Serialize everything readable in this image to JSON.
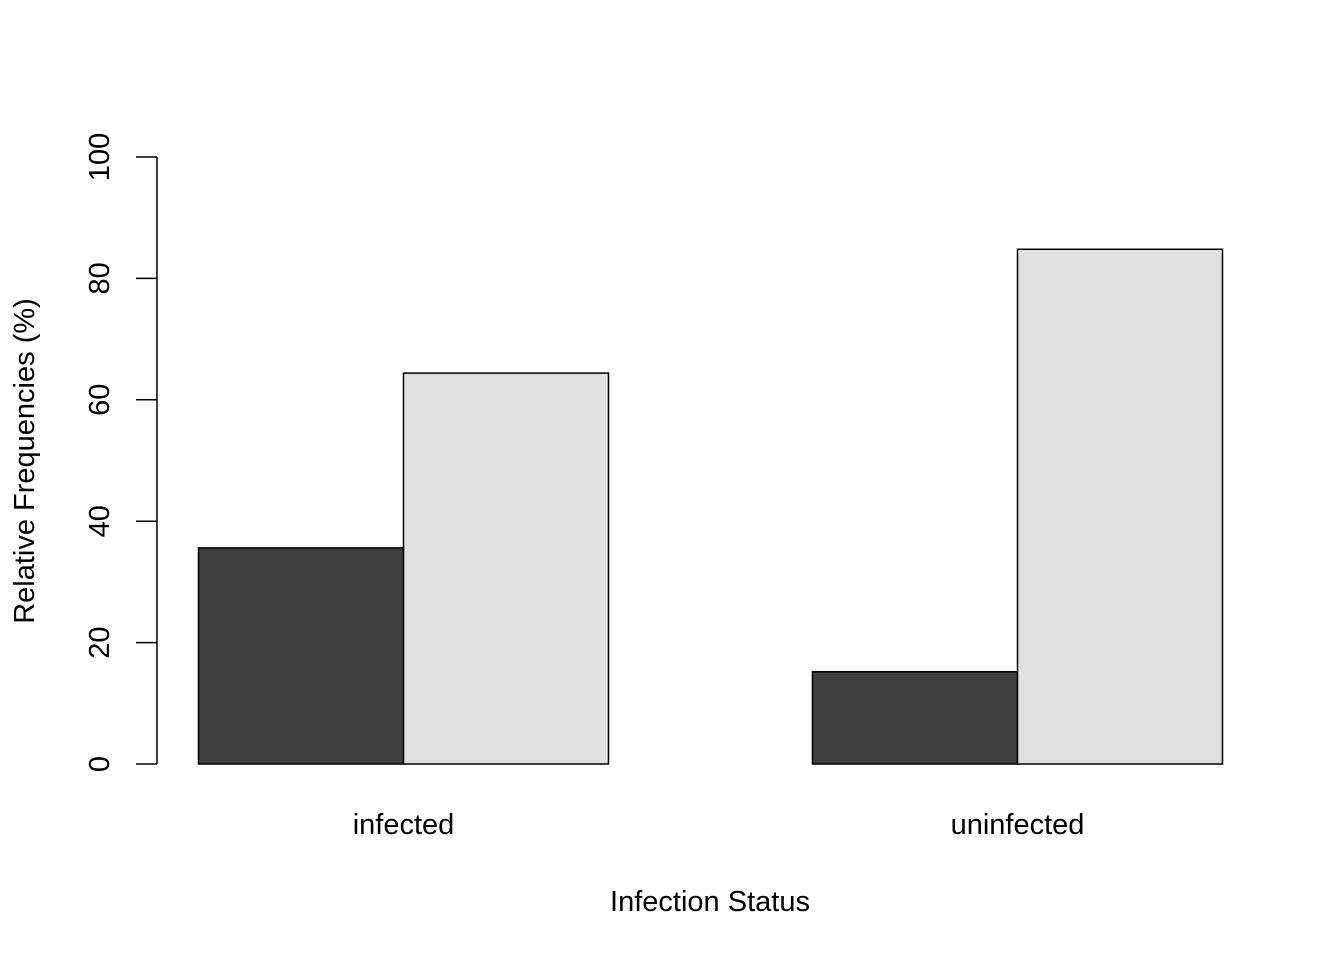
{
  "chart_data": {
    "type": "bar",
    "title": "",
    "xlabel": "Infection Status",
    "ylabel": "Relative Frequencies (%)",
    "categories": [
      "infected",
      "uninfected"
    ],
    "ylim": [
      0,
      100
    ],
    "yticks": [
      0,
      20,
      40,
      60,
      80,
      100
    ],
    "grid": false,
    "series": [
      {
        "color": "#3f3f3f",
        "values": [
          35.6,
          15.2
        ]
      },
      {
        "color": "#e0e0e0",
        "values": [
          64.4,
          84.8
        ]
      }
    ]
  }
}
